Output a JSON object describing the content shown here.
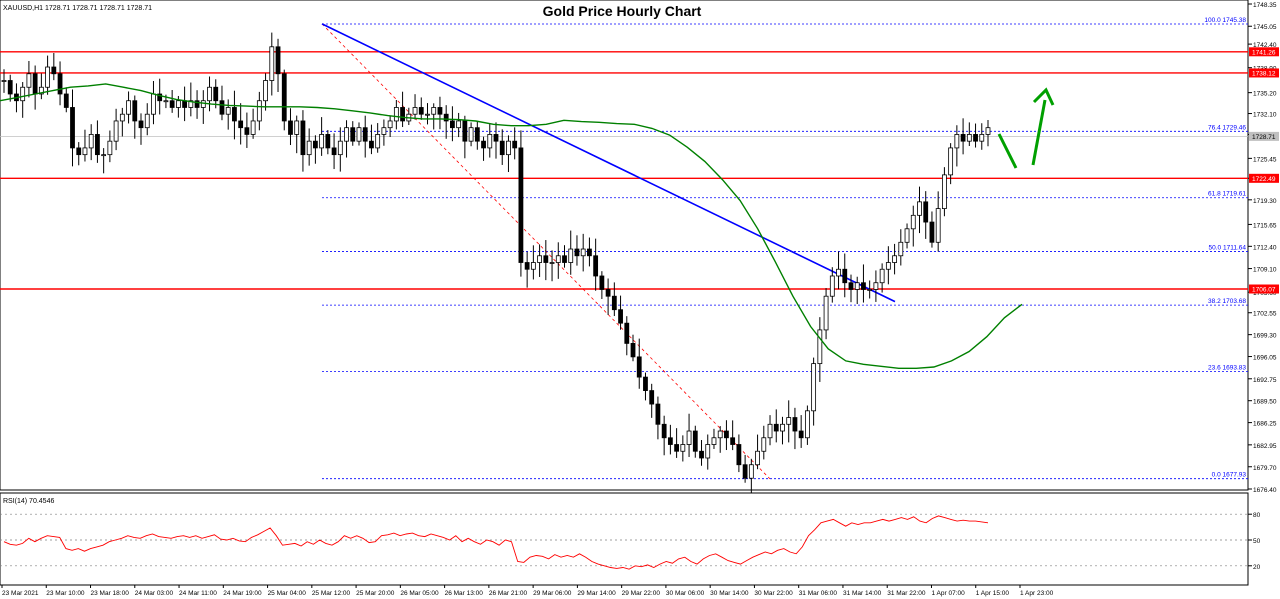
{
  "header": {
    "symbol_line": "XAUUSD,H1   1728.71  1728.71  1728.71  1728.71",
    "title": "Gold Price Hourly Chart"
  },
  "rsi": {
    "label": "RSI(14) 70.4546",
    "levels": [
      80,
      50,
      20
    ],
    "ticks": [
      "80",
      "50",
      "20"
    ]
  },
  "chart_data": {
    "type": "candlestick",
    "title": "Gold Price Hourly Chart",
    "symbol": "XAUUSD",
    "timeframe": "H1",
    "price_axis_ticks": [
      "1748.35",
      "1745.05",
      "1742.40",
      "1738.90",
      "1735.20",
      "1732.10",
      "1729.00",
      "1725.45",
      "1722.50",
      "1719.30",
      "1715.65",
      "1712.40",
      "1709.10",
      "1705.60",
      "1702.55",
      "1699.30",
      "1696.05",
      "1692.75",
      "1689.50",
      "1686.25",
      "1682.95",
      "1679.70",
      "1676.40"
    ],
    "y_range": [
      1676.4,
      1748.35
    ],
    "time_axis_ticks": [
      "23 Mar 2021",
      "23 Mar 10:00",
      "23 Mar 18:00",
      "24 Mar 03:00",
      "24 Mar 11:00",
      "24 Mar 19:00",
      "25 Mar 04:00",
      "25 Mar 12:00",
      "25 Mar 20:00",
      "26 Mar 05:00",
      "26 Mar 13:00",
      "26 Mar 21:00",
      "29 Mar 06:00",
      "29 Mar 14:00",
      "29 Mar 22:00",
      "30 Mar 06:00",
      "30 Mar 14:00",
      "30 Mar 22:00",
      "31 Mar 06:00",
      "31 Mar 14:00",
      "31 Mar 22:00",
      "1 Apr 07:00",
      "1 Apr 15:00",
      "1 Apr 23:00"
    ],
    "close_path": [
      1737,
      1735,
      1734,
      1736,
      1738,
      1735,
      1736,
      1739,
      1738,
      1735,
      1733,
      1727,
      1726,
      1727,
      1729,
      1726,
      1726,
      1728,
      1731,
      1732,
      1734,
      1731,
      1730,
      1732,
      1735,
      1734,
      1734,
      1733,
      1734,
      1733,
      1734,
      1733,
      1734,
      1736,
      1734,
      1732,
      1733,
      1731,
      1730,
      1729,
      1731,
      1734,
      1737,
      1742,
      1738,
      1731,
      1729,
      1731,
      1726,
      1728,
      1727,
      1729,
      1727,
      1726,
      1728,
      1730,
      1728,
      1730,
      1728,
      1727,
      1729,
      1730,
      1731,
      1733,
      1731,
      1732,
      1733,
      1732,
      1732,
      1733,
      1732,
      1731,
      1730,
      1731,
      1728,
      1730,
      1728,
      1727,
      1729,
      1728,
      1726,
      1728,
      1727,
      1710,
      1709,
      1710,
      1711,
      1710,
      1710,
      1711,
      1710,
      1712,
      1711,
      1712,
      1711,
      1708,
      1706,
      1705,
      1703,
      1701,
      1698,
      1696,
      1693,
      1691,
      1689,
      1686,
      1684,
      1683,
      1682,
      1683,
      1685,
      1682,
      1681,
      1683,
      1684,
      1685,
      1684,
      1683,
      1680,
      1678,
      1680,
      1682,
      1684,
      1686,
      1685,
      1686,
      1687,
      1685,
      1684,
      1688,
      1695,
      1700,
      1705,
      1708,
      1709,
      1707,
      1706,
      1707,
      1706,
      1706,
      1707,
      1709,
      1710,
      1711,
      1713,
      1715,
      1717,
      1719,
      1716,
      1713,
      1718,
      1723,
      1727,
      1729,
      1728,
      1729,
      1728,
      1729,
      1730
    ],
    "ma_path": [
      1734,
      1734.5,
      1735,
      1735.5,
      1736,
      1736.2,
      1736.5,
      1736,
      1735.5,
      1734.8,
      1734.2,
      1733.8,
      1733.5,
      1733.3,
      1733.2,
      1733.1,
      1733.1,
      1733.1,
      1733,
      1732.8,
      1732.5,
      1732.2,
      1731.8,
      1731.5,
      1731.3,
      1731.3,
      1731.2,
      1731,
      1730.5,
      1730.3,
      1730.3,
      1730.5,
      1731.1,
      1730.9,
      1730.8,
      1730.6,
      1730.5,
      1729.9,
      1728.9,
      1727.1,
      1725.0,
      1722.3,
      1719.2,
      1715.0,
      1710.1,
      1705.0,
      1700.5,
      1697.2,
      1695.4,
      1694.9,
      1694.6,
      1694.3,
      1694.3,
      1694.5,
      1695.4,
      1696.8,
      1699.0,
      1701.8,
      1703.8
    ],
    "series": [
      {
        "name": "RSI(14)",
        "last_value": 70.4546,
        "values": [
          48,
          45,
          44,
          46,
          52,
          48,
          52,
          55,
          54,
          53,
          40,
          38,
          40,
          37,
          40,
          42,
          44,
          48,
          50,
          52,
          55,
          53,
          52,
          55,
          57,
          54,
          53,
          52,
          54,
          55,
          53,
          55,
          52,
          54,
          56,
          51,
          50,
          52,
          49,
          48,
          53,
          56,
          60,
          64,
          55,
          44,
          45,
          46,
          43,
          48,
          45,
          50,
          46,
          44,
          48,
          55,
          52,
          55,
          52,
          47,
          48,
          55,
          56,
          58,
          55,
          57,
          58,
          55,
          54,
          57,
          55,
          53,
          50,
          55,
          48,
          52,
          48,
          45,
          50,
          48,
          44,
          50,
          48,
          25,
          24,
          30,
          32,
          31,
          28,
          33,
          30,
          32,
          30,
          34,
          30,
          25,
          22,
          20,
          18,
          17,
          18,
          16,
          20,
          19,
          21,
          18,
          22,
          25,
          23,
          28,
          30,
          25,
          22,
          28,
          32,
          34,
          30,
          26,
          24,
          22,
          26,
          30,
          33,
          36,
          34,
          38,
          40,
          36,
          34,
          42,
          55,
          62,
          70,
          72,
          74,
          70,
          66,
          70,
          68,
          70,
          70,
          72,
          74,
          72,
          74,
          76,
          74,
          77,
          72,
          70,
          75,
          78,
          76,
          74,
          72,
          73,
          72,
          72,
          71,
          70
        ]
      }
    ],
    "horizontal_levels": [
      {
        "label": "1741.26",
        "value": 1741.26,
        "color": "#ff0000"
      },
      {
        "label": "1738.12",
        "value": 1738.12,
        "color": "#ff0000"
      },
      {
        "label": "1722.49",
        "value": 1722.49,
        "color": "#ff0000"
      },
      {
        "label": "1706.07",
        "value": 1706.07,
        "color": "#ff0000"
      },
      {
        "label": "1728.71",
        "value": 1728.71,
        "color": "#c0c0c0"
      }
    ],
    "fibonacci": [
      {
        "label": "100.0 1745.38",
        "value": 1745.38
      },
      {
        "label": "76.4 1729.46",
        "value": 1729.46
      },
      {
        "label": "61.8 1719.61",
        "value": 1719.61
      },
      {
        "label": "50.0 1711.64",
        "value": 1711.64
      },
      {
        "label": "38.2 1703.68",
        "value": 1703.68
      },
      {
        "label": "23.6 1693.83",
        "value": 1693.83
      },
      {
        "label": "0.0 1677.93",
        "value": 1677.93
      }
    ],
    "trend_line": {
      "from": 1745.4,
      "to": 1704.2,
      "color": "#0000ff"
    },
    "fib_diagonal": {
      "from": 1745.4,
      "to": 1677.9,
      "color": "#ff0000"
    },
    "colors": {
      "candle": "#000000",
      "ma": "#008000",
      "rsi": "#ff0000",
      "arrow": "#00a000",
      "grid": "#0000ff"
    }
  }
}
